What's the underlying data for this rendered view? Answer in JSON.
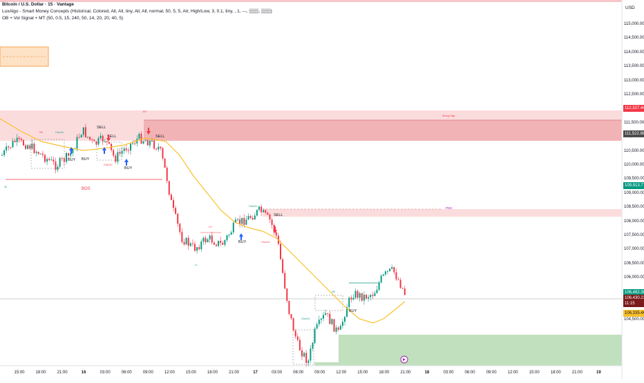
{
  "legend": {
    "line1": "Bitcoin / U.S. Dollar · 15 · Vantage",
    "line2": "LuxAlgo - Smart Money Concepts (Historical, Colored, All, All, tiny, All, All, normal, 50, 5, 5, Atr, High/Low, 3, 0.1, tiny, , 1, ---, ▒▒▒, ▒▒▒)",
    "line3": "OB + Vol Signal + MT (50, 0.5, 15, 240, 50, 14, 20, 20, 40, 5)"
  },
  "currency": "USD",
  "price_axis": {
    "labels": [
      "115,000.00",
      "114,500.00",
      "114,000.00",
      "113,500.00",
      "113,000.00",
      "112,500.00",
      "112,000.00",
      "111,500.00",
      "111,000.00",
      "110,500.00",
      "110,000.00",
      "109,500.00",
      "109,000.00",
      "108,500.00",
      "108,000.00",
      "107,500.00",
      "107,000.00",
      "106,500.00",
      "106,000.00",
      "105,500.00",
      "105,000.00",
      "104,500.00"
    ]
  },
  "badges": {
    "b1": {
      "text": "112,327.44",
      "color": "#f23645"
    },
    "b2": {
      "text": "111,522.88",
      "color": "#4a4a4a"
    },
    "b3": {
      "text": "109,913.77",
      "color": "#089981"
    },
    "b4": {
      "text": "106,482.36",
      "color": "#089981"
    },
    "b5": {
      "text": "106,430.23",
      "color": "#7a1a1a"
    },
    "b5b": {
      "text": "11:15",
      "color": "#7a1a1a"
    },
    "b6": {
      "text": "106,335.46",
      "color": "#f9c02b"
    }
  },
  "time_axis": [
    {
      "text": "15:00",
      "bold": false
    },
    {
      "text": "18:00",
      "bold": false
    },
    {
      "text": "21:00",
      "bold": false
    },
    {
      "text": "16",
      "bold": true
    },
    {
      "text": "03:00",
      "bold": false
    },
    {
      "text": "06:00",
      "bold": false
    },
    {
      "text": "09:00",
      "bold": false
    },
    {
      "text": "12:00",
      "bold": false
    },
    {
      "text": "15:00",
      "bold": false
    },
    {
      "text": "18:00",
      "bold": false
    },
    {
      "text": "21:00",
      "bold": false
    },
    {
      "text": "17",
      "bold": true
    },
    {
      "text": "03:00",
      "bold": false
    },
    {
      "text": "06:00",
      "bold": false
    },
    {
      "text": "09:00",
      "bold": false
    },
    {
      "text": "12:00",
      "bold": false
    },
    {
      "text": "15:00",
      "bold": false
    },
    {
      "text": "18:00",
      "bold": false
    },
    {
      "text": "21:00",
      "bold": false
    },
    {
      "text": "18",
      "bold": true
    },
    {
      "text": "03:00",
      "bold": false
    },
    {
      "text": "06:00",
      "bold": false
    },
    {
      "text": "09:00",
      "bold": false
    },
    {
      "text": "12:00",
      "bold": false
    },
    {
      "text": "15:00",
      "bold": false
    },
    {
      "text": "18:00",
      "bold": false
    },
    {
      "text": "21:00",
      "bold": false
    },
    {
      "text": "19",
      "bold": true
    }
  ],
  "annotations": {
    "bos": "BOS",
    "buy": "BUY",
    "sell": "SELL",
    "choch": "ChoCh",
    "strong_high": "Strong High",
    "pdh": "PDH",
    "eh": "EH",
    "hl": "HL",
    "ll": "LL",
    "lh": "LH",
    "hh": "HH"
  },
  "colors": {
    "up": "#089981",
    "down": "#f23645",
    "ema": "#f9c02b",
    "supply": "#f4b0b3",
    "supply_light": "#fbdcdd",
    "demand": "#b9dcb5",
    "orange_box": "#fde2c6"
  }
}
